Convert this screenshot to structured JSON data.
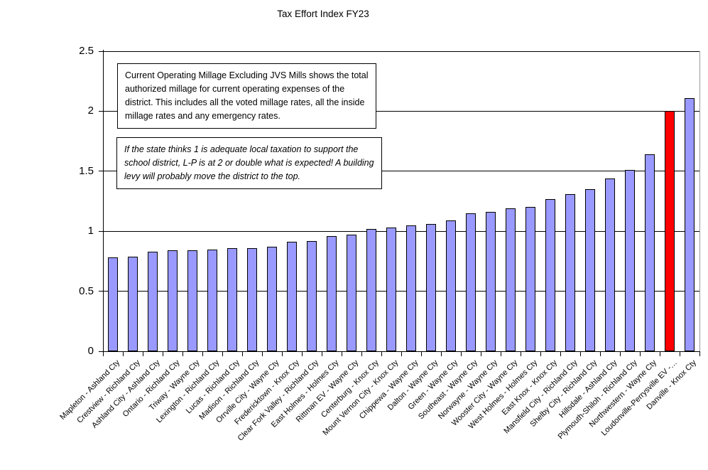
{
  "chart_title": "Tax Effort Index FY23",
  "annotations": {
    "millage_note": "Current Operating Millage Excluding JVS Mills shows the total\nauthorized millage for current operating expenses of the\ndistrict. This includes all the voted millage rates, all the inside\nmillage rates and any emergency rates.",
    "levy_note": "If the state thinks 1 is adequate local taxation to support the\nschool district, L-P is at 2 or double what is expected! A building\nlevy will probably move the district to the top."
  },
  "chart_data": {
    "type": "bar",
    "title": "Tax Effort Index FY23",
    "categories": [
      "Mapleton - Ashland Cty",
      "Crestview - Richland Cty",
      "Ashland City - Ashland Cty",
      "Ontario - Richland Cty",
      "Triway - Wayne Cty",
      "Lexington - Richland Cty",
      "Lucas - Richland Cty",
      "Madison - Richland Cty",
      "Orrville City - Wayne Cty",
      "Fredericktown - Knox Cty",
      "Clear Fork Valley - Richland Cty",
      "East Holmes - Holmes Cty",
      "Rittman EV - Wayne Cty",
      "Centerburg - Knox Cty",
      "Mount Vernon City - Knox Cty",
      "Chippewa - Wayne Cty",
      "Dalton - Wayne Cty",
      "Green - Wayne Cty",
      "Southeast - Wayne Cty",
      "Norwayne - Wayne Cty",
      "Wooster City - Wayne Cty",
      "West Holmes - Holmes Cty",
      "East Knox - Knox Cty",
      "Mansfield City - Richland Cty",
      "Shelby City - Richland Cty",
      "Hillsdale - Ashland Cty",
      "Plymouth-Shiloh - Richland Cty",
      "Northwestern - Wayne Cty",
      "Loudonville-Perrysville EV -…",
      "Danville - Knox Cty"
    ],
    "values": [
      0.78,
      0.79,
      0.83,
      0.84,
      0.84,
      0.85,
      0.86,
      0.86,
      0.87,
      0.91,
      0.92,
      0.96,
      0.97,
      1.02,
      1.03,
      1.05,
      1.06,
      1.09,
      1.15,
      1.16,
      1.19,
      1.2,
      1.27,
      1.31,
      1.35,
      1.44,
      1.51,
      1.64,
      2.0,
      2.11
    ],
    "highlight_index": 28,
    "highlight_category": "Loudonville-Perrysville EV -…",
    "bar_color": "#9999FF",
    "highlight_color": "#FF0000",
    "bar_border_color": "#000000",
    "xlabel": "",
    "ylabel": "",
    "ylim": [
      0,
      2.5
    ],
    "y_ticks": [
      "0",
      "0.5",
      "1",
      "1.5",
      "2",
      "2.5"
    ],
    "grid": true,
    "legend": "none"
  }
}
